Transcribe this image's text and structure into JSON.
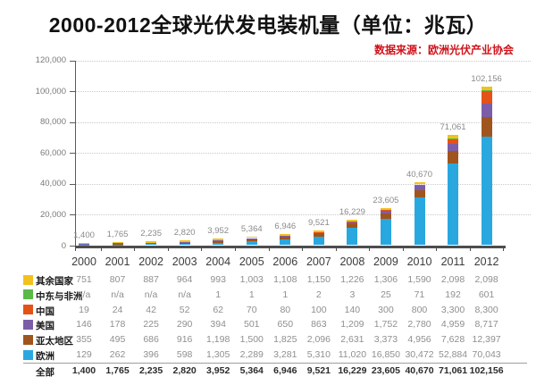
{
  "title": "2000-2012全球光伏发电装机量（单位：兆瓦）",
  "source_note": "数据来源：欧洲光伏产业协会",
  "accent_colors": {
    "title_text": "#111111",
    "source_text": "#d0121a",
    "axis": "#4d4d4d",
    "grid": "#c9c9c9"
  },
  "chart_data": {
    "type": "bar",
    "stacked": true,
    "title": "2000-2012全球光伏发电装机量（单位：兆瓦）",
    "unit": "兆瓦",
    "categories": [
      "2000",
      "2001",
      "2002",
      "2003",
      "2004",
      "2005",
      "2006",
      "2007",
      "2008",
      "2009",
      "2010",
      "2011",
      "2012"
    ],
    "series": [
      {
        "name": "其余国家",
        "color": "#F2C11E",
        "values": [
          751,
          807,
          887,
          964,
          993,
          1003,
          1108,
          1150,
          1226,
          1306,
          1590,
          2098,
          2098
        ]
      },
      {
        "name": "中东与非洲",
        "color": "#5BB947",
        "values": [
          null,
          null,
          null,
          null,
          1,
          1,
          1,
          2,
          3,
          25,
          71,
          192,
          601
        ]
      },
      {
        "name": "中国",
        "color": "#E55217",
        "values": [
          19,
          24,
          42,
          52,
          62,
          70,
          80,
          100,
          140,
          300,
          800,
          3300,
          8300
        ]
      },
      {
        "name": "美国",
        "color": "#7C5EA8",
        "values": [
          146,
          178,
          225,
          290,
          394,
          501,
          650,
          863,
          1209,
          1752,
          2780,
          4959,
          8717
        ]
      },
      {
        "name": "亚太地区",
        "color": "#A0551E",
        "values": [
          355,
          495,
          686,
          916,
          1198,
          1500,
          1825,
          2096,
          2631,
          3373,
          4956,
          7628,
          12397
        ]
      },
      {
        "name": "欧洲",
        "color": "#29A8E0",
        "values": [
          129,
          262,
          396,
          598,
          1305,
          2289,
          3281,
          5310,
          11020,
          16850,
          30472,
          52884,
          70043
        ]
      }
    ],
    "stack_bottom_to_top": [
      "欧洲",
      "亚太地区",
      "美国",
      "中国",
      "中东与非洲",
      "其余国家"
    ],
    "totals": [
      1400,
      1765,
      2235,
      2820,
      3952,
      5364,
      6946,
      9521,
      16229,
      23605,
      40670,
      71061,
      102156
    ],
    "total_row_label": "全部",
    "na_text": "n/a",
    "ylim": [
      0,
      120000
    ],
    "ytick_step": 20000,
    "grid": "horizontal-dotted",
    "legend_position": "table-rows-left",
    "bar_value_labels": "totals-above-bars"
  }
}
